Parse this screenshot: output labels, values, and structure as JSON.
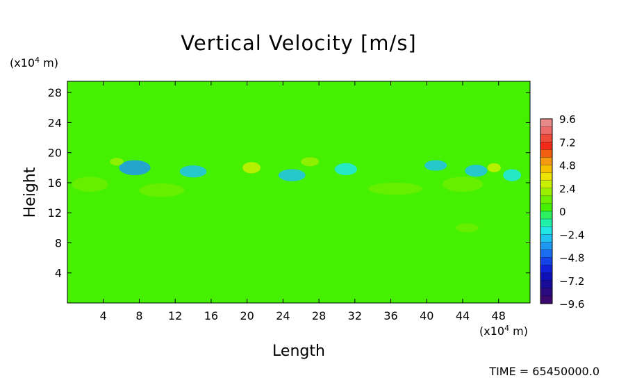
{
  "chart_data": {
    "type": "heatmap",
    "title": "Vertical Velocity [m/s]",
    "xlabel": "Length",
    "ylabel": "Height",
    "x_unit_prefix": "(x10",
    "x_unit_exp": "4",
    "x_unit_suffix": " m)",
    "y_unit_prefix": "(x10",
    "y_unit_exp": "4",
    "y_unit_suffix": " m)",
    "xlim": [
      0,
      51.5
    ],
    "ylim": [
      0,
      29.5
    ],
    "x_ticks": [
      4,
      8,
      12,
      16,
      20,
      24,
      28,
      32,
      36,
      40,
      44,
      48
    ],
    "x_tick_labels": [
      "4",
      "8",
      "12",
      "16",
      "20",
      "24",
      "28",
      "32",
      "36",
      "40",
      "44",
      "48"
    ],
    "y_ticks": [
      4,
      8,
      12,
      16,
      20,
      24,
      28
    ],
    "y_tick_labels": [
      "4",
      "8",
      "12",
      "16",
      "20",
      "24",
      "28"
    ],
    "background_value": 0.3,
    "features": [
      {
        "x": 7.5,
        "y": 18.0,
        "w": 3.5,
        "h": 2.0,
        "value": -3.2
      },
      {
        "x": 14.0,
        "y": 17.5,
        "w": 3.0,
        "h": 1.6,
        "value": -2.4
      },
      {
        "x": 25.0,
        "y": 17.0,
        "w": 3.0,
        "h": 1.6,
        "value": -2.6
      },
      {
        "x": 31.0,
        "y": 17.8,
        "w": 2.5,
        "h": 1.6,
        "value": -2.2
      },
      {
        "x": 41.0,
        "y": 18.3,
        "w": 2.5,
        "h": 1.4,
        "value": -3.0
      },
      {
        "x": 45.5,
        "y": 17.6,
        "w": 2.5,
        "h": 1.6,
        "value": -2.4
      },
      {
        "x": 49.5,
        "y": 17.0,
        "w": 2.0,
        "h": 1.6,
        "value": -2.0
      },
      {
        "x": 20.5,
        "y": 18.0,
        "w": 2.0,
        "h": 1.5,
        "value": 2.8
      },
      {
        "x": 27.0,
        "y": 18.8,
        "w": 2.0,
        "h": 1.2,
        "value": 2.4
      },
      {
        "x": 47.5,
        "y": 18.0,
        "w": 1.5,
        "h": 1.2,
        "value": 2.6
      },
      {
        "x": 5.5,
        "y": 18.8,
        "w": 1.5,
        "h": 1.0,
        "value": 2.0
      },
      {
        "x": 44.0,
        "y": 15.8,
        "w": 4.5,
        "h": 2.0,
        "value": 1.6
      },
      {
        "x": 2.5,
        "y": 15.8,
        "w": 4.0,
        "h": 2.0,
        "value": 1.4
      },
      {
        "x": 10.5,
        "y": 15.0,
        "w": 5.0,
        "h": 1.8,
        "value": 1.2
      },
      {
        "x": 36.5,
        "y": 15.2,
        "w": 6.0,
        "h": 1.6,
        "value": 1.2
      },
      {
        "x": 44.5,
        "y": 10.0,
        "w": 2.5,
        "h": 1.2,
        "value": 1.0
      }
    ],
    "colorbar": {
      "min": -9.6,
      "max": 9.6,
      "levels": 24,
      "tick_values": [
        9.6,
        7.2,
        4.8,
        2.4,
        0,
        -2.4,
        -4.8,
        -7.2,
        -9.6
      ],
      "tick_labels": [
        "9.6",
        "7.2",
        "4.8",
        "2.4",
        "0",
        "−2.4",
        "−4.8",
        "−7.2",
        "−9.6"
      ]
    }
  },
  "footer": {
    "time_label": "TIME = 65450000.0"
  }
}
